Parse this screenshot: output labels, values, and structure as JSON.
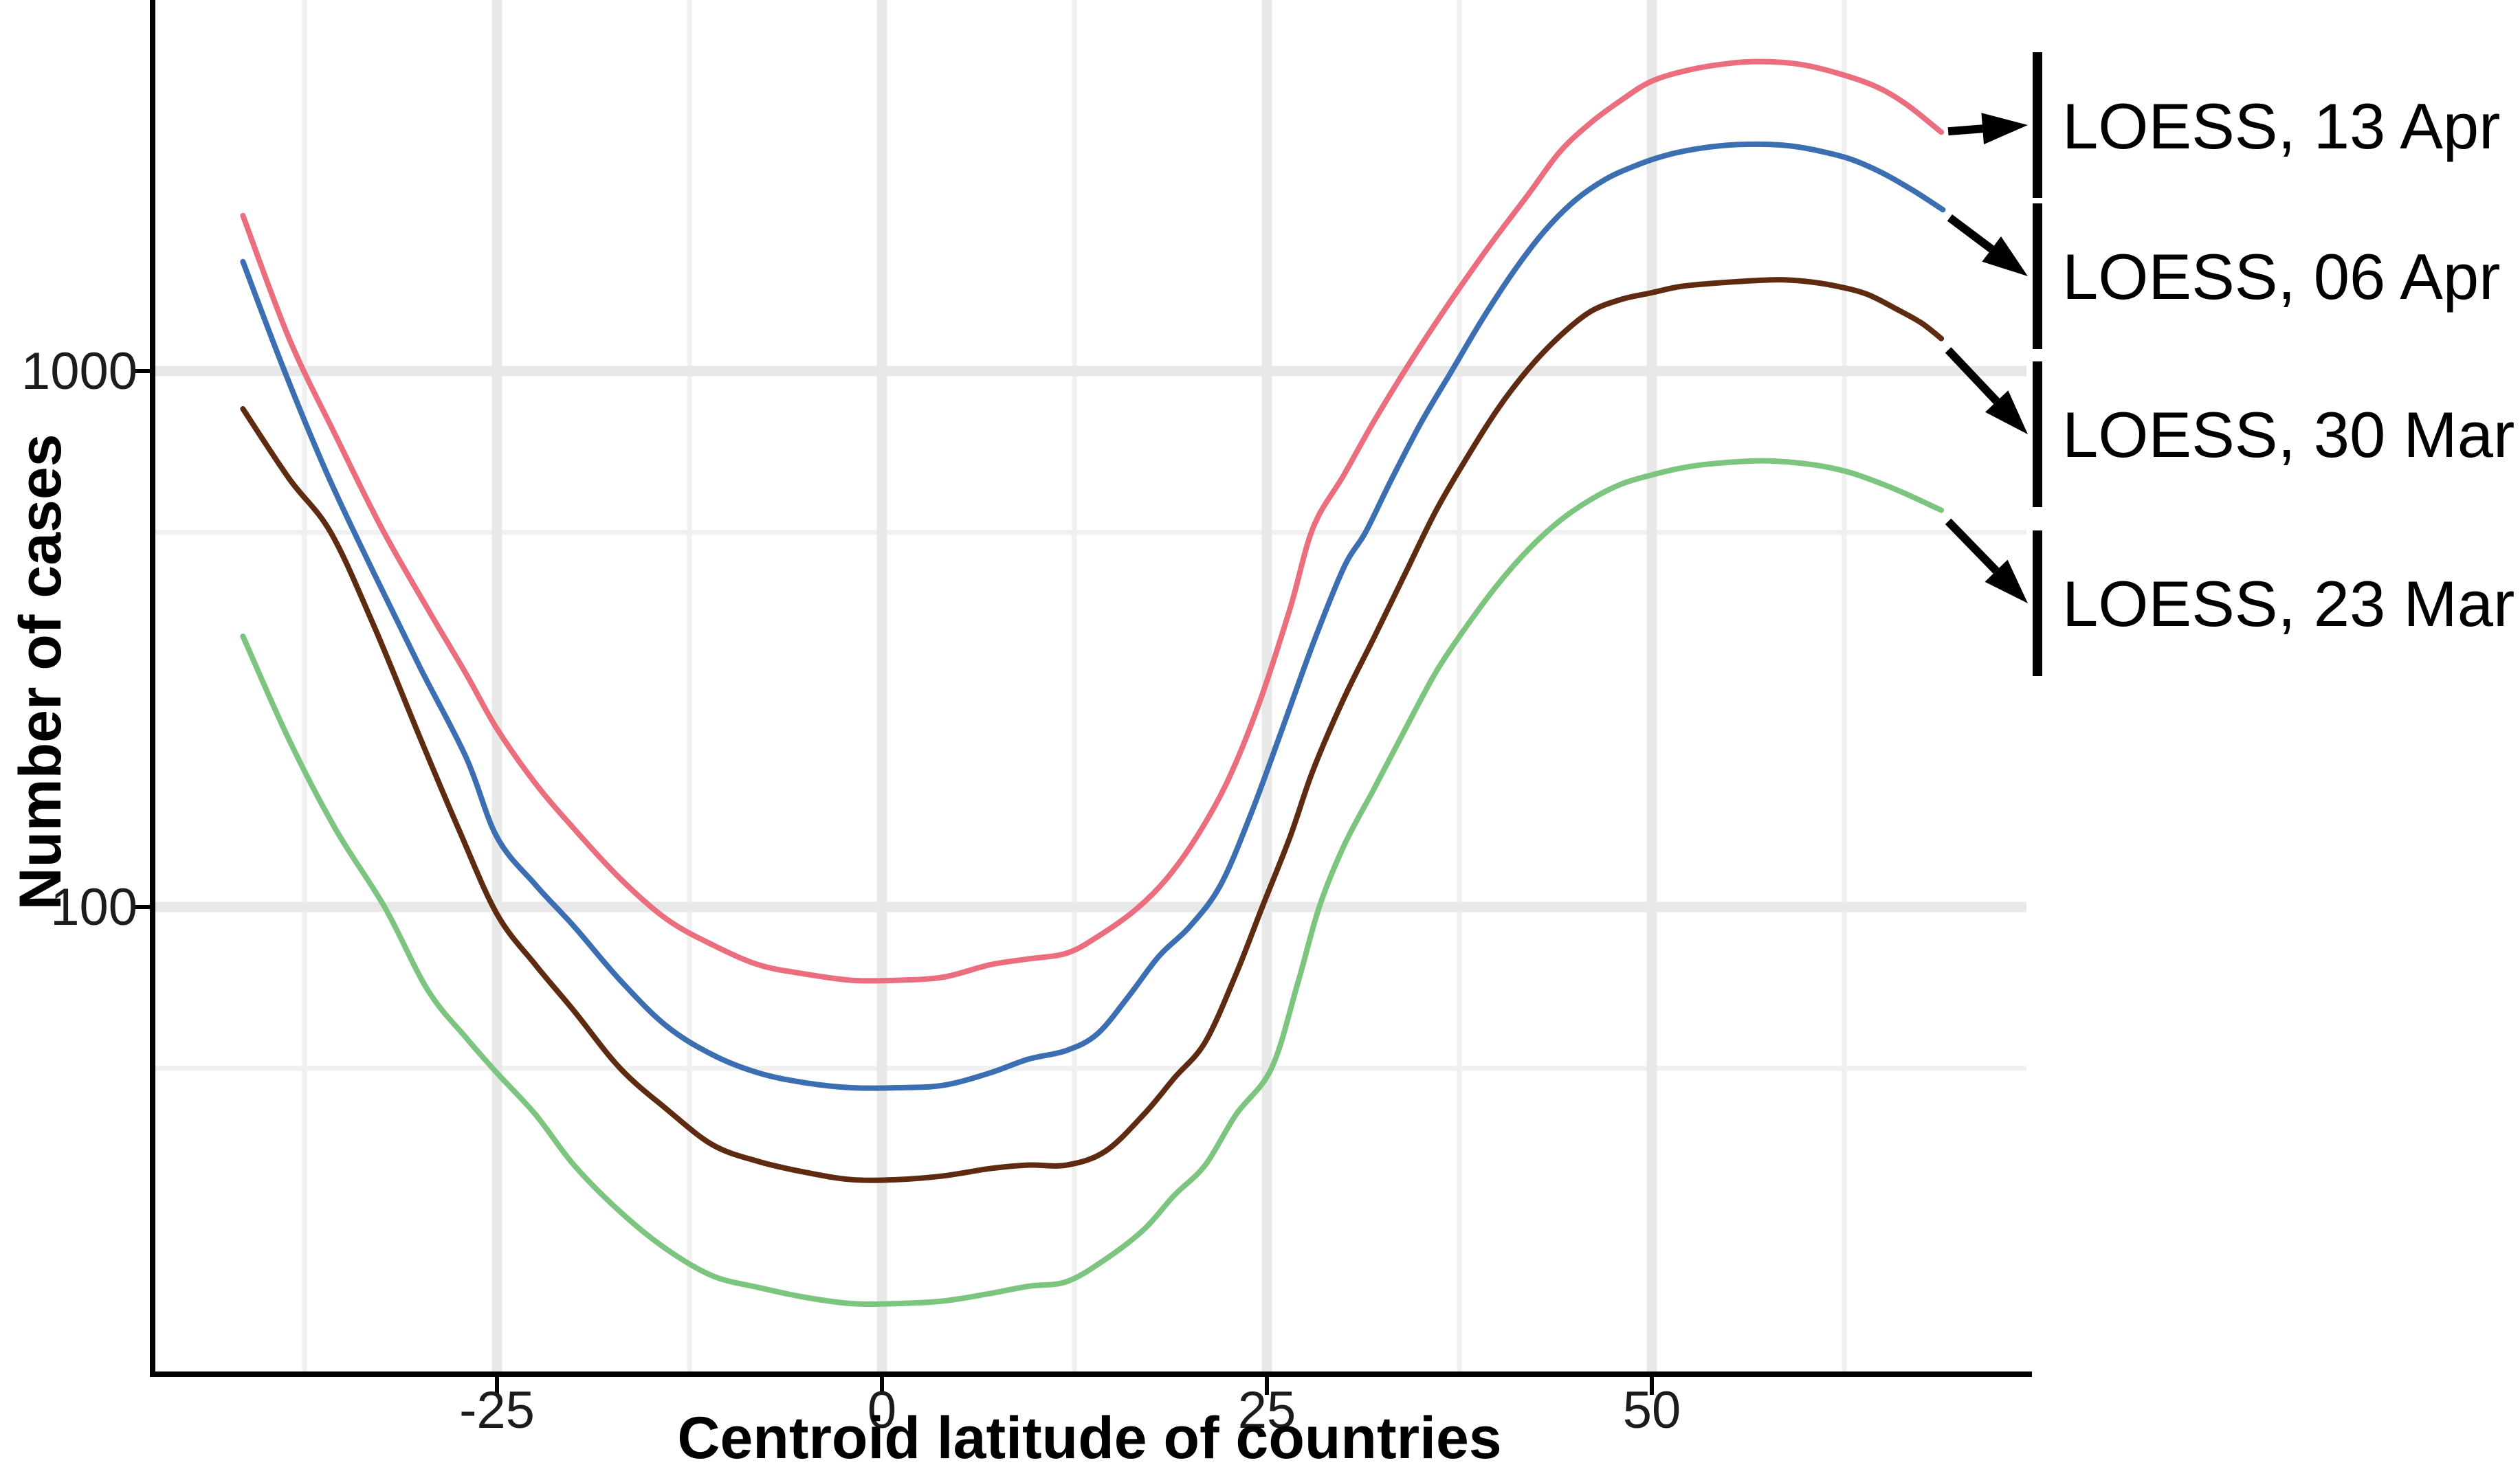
{
  "page": {
    "background": "#ffffff"
  },
  "chart_data": {
    "type": "line",
    "title": "",
    "xlabel": "Centroid latitude of countries",
    "ylabel": "Number of cases",
    "grid": true,
    "legend_position": "right-annotations",
    "x_axis": {
      "label": "Centroid latitude of countries",
      "tick_values": [
        -25,
        0,
        25,
        50
      ],
      "tick_labels": [
        "-25",
        "0",
        "25",
        "50"
      ],
      "minor_gridlines": [
        -37.5,
        -12.5,
        12.5,
        37.5,
        62.5
      ],
      "range": [
        -47.3,
        74.3
      ]
    },
    "y_axis": {
      "label": "Number of cases",
      "scale": "log10",
      "tick_values": [
        1000,
        100
      ],
      "tick_labels": [
        "1000",
        "100"
      ],
      "minor_gridlines": [
        500,
        50
      ],
      "range": [
        13.5,
        4800
      ]
    },
    "series": [
      {
        "name": "LOESS, 13 Apr",
        "color": "#ea6e7e",
        "points": [
          [
            -41.5,
            1950
          ],
          [
            -38.5,
            1150
          ],
          [
            -35.5,
            760
          ],
          [
            -32.5,
            510
          ],
          [
            -29.5,
            360
          ],
          [
            -27,
            272
          ],
          [
            -25,
            215
          ],
          [
            -22.5,
            170
          ],
          [
            -20,
            140
          ],
          [
            -17,
            113
          ],
          [
            -14,
            95
          ],
          [
            -11,
            85
          ],
          [
            -8,
            78
          ],
          [
            -5,
            75
          ],
          [
            -2,
            73
          ],
          [
            1,
            73
          ],
          [
            4,
            74
          ],
          [
            7,
            78
          ],
          [
            9.5,
            80
          ],
          [
            12,
            82
          ],
          [
            14,
            88
          ],
          [
            16.5,
            99
          ],
          [
            18.5,
            113
          ],
          [
            20.5,
            136
          ],
          [
            22.5,
            173
          ],
          [
            24.5,
            240
          ],
          [
            26.5,
            360
          ],
          [
            28,
            510
          ],
          [
            30,
            640
          ],
          [
            32,
            810
          ],
          [
            34.5,
            1060
          ],
          [
            37,
            1360
          ],
          [
            39.5,
            1720
          ],
          [
            42,
            2140
          ],
          [
            44,
            2560
          ],
          [
            46,
            2900
          ],
          [
            48,
            3200
          ],
          [
            50,
            3475
          ],
          [
            52.5,
            3650
          ],
          [
            55,
            3750
          ],
          [
            57,
            3780
          ],
          [
            59.5,
            3740
          ],
          [
            62,
            3600
          ],
          [
            64.5,
            3400
          ],
          [
            66.5,
            3150
          ],
          [
            68.8,
            2790
          ]
        ]
      },
      {
        "name": "LOESS, 06 Apr",
        "color": "#3c6fb1",
        "points": [
          [
            -41.5,
            1600
          ],
          [
            -38.8,
            1000
          ],
          [
            -36,
            640
          ],
          [
            -33,
            420
          ],
          [
            -30,
            280
          ],
          [
            -27,
            190
          ],
          [
            -25,
            135
          ],
          [
            -22.5,
            110
          ],
          [
            -20,
            92
          ],
          [
            -17,
            73
          ],
          [
            -14,
            60
          ],
          [
            -11,
            53
          ],
          [
            -8,
            49
          ],
          [
            -5,
            47
          ],
          [
            -2,
            46
          ],
          [
            1,
            46
          ],
          [
            4,
            46.5
          ],
          [
            7,
            49
          ],
          [
            9.5,
            52
          ],
          [
            12,
            54
          ],
          [
            14,
            58
          ],
          [
            16,
            68
          ],
          [
            18,
            81
          ],
          [
            20,
            92
          ],
          [
            22,
            110
          ],
          [
            24,
            150
          ],
          [
            26,
            215
          ],
          [
            28,
            310
          ],
          [
            30,
            430
          ],
          [
            31.4,
            500
          ],
          [
            33,
            620
          ],
          [
            35,
            800
          ],
          [
            37,
            1000
          ],
          [
            39,
            1250
          ],
          [
            41,
            1530
          ],
          [
            43,
            1820
          ],
          [
            45,
            2080
          ],
          [
            47,
            2280
          ],
          [
            49,
            2420
          ],
          [
            51,
            2530
          ],
          [
            53,
            2600
          ],
          [
            55,
            2640
          ],
          [
            57,
            2650
          ],
          [
            59,
            2630
          ],
          [
            61,
            2570
          ],
          [
            63,
            2480
          ],
          [
            65,
            2340
          ],
          [
            67,
            2170
          ],
          [
            68.9,
            2000
          ]
        ]
      },
      {
        "name": "LOESS, 30 Mar",
        "color": "#5e2b11",
        "points": [
          [
            -41.5,
            850
          ],
          [
            -38.5,
            630
          ],
          [
            -35.8,
            500
          ],
          [
            -33,
            335
          ],
          [
            -30,
            207
          ],
          [
            -27.5,
            140
          ],
          [
            -25,
            97
          ],
          [
            -22.5,
            78
          ],
          [
            -20,
            64
          ],
          [
            -17,
            50
          ],
          [
            -14,
            42
          ],
          [
            -11,
            36
          ],
          [
            -8,
            33.5
          ],
          [
            -5,
            32
          ],
          [
            -2,
            31
          ],
          [
            1,
            31
          ],
          [
            4,
            31.5
          ],
          [
            7,
            32.5
          ],
          [
            9.5,
            33
          ],
          [
            12,
            33
          ],
          [
            14.5,
            35
          ],
          [
            17,
            41
          ],
          [
            19,
            48
          ],
          [
            21,
            56
          ],
          [
            23,
            75
          ],
          [
            24.7,
            100
          ],
          [
            26.5,
            135
          ],
          [
            28,
            180
          ],
          [
            30,
            245
          ],
          [
            32,
            320
          ],
          [
            34,
            420
          ],
          [
            36,
            550
          ],
          [
            38,
            690
          ],
          [
            40,
            850
          ],
          [
            42,
            1010
          ],
          [
            44,
            1160
          ],
          [
            46,
            1290
          ],
          [
            48,
            1360
          ],
          [
            50,
            1400
          ],
          [
            52,
            1440
          ],
          [
            55,
            1465
          ],
          [
            58,
            1480
          ],
          [
            60,
            1470
          ],
          [
            62,
            1440
          ],
          [
            64,
            1390
          ],
          [
            66,
            1300
          ],
          [
            67.5,
            1230
          ],
          [
            68.8,
            1150
          ]
        ]
      },
      {
        "name": "LOESS, 23 Mar",
        "color": "#7cc57e",
        "points": [
          [
            -41.5,
            320
          ],
          [
            -38.5,
            205
          ],
          [
            -35.5,
            140
          ],
          [
            -32.3,
            100
          ],
          [
            -29.5,
            70
          ],
          [
            -27,
            57
          ],
          [
            -25,
            49
          ],
          [
            -22.5,
            41
          ],
          [
            -20,
            33
          ],
          [
            -17,
            27
          ],
          [
            -14,
            23
          ],
          [
            -11,
            20.5
          ],
          [
            -8,
            19.5
          ],
          [
            -5,
            18.7
          ],
          [
            -2,
            18.2
          ],
          [
            1,
            18.2
          ],
          [
            4,
            18.4
          ],
          [
            7,
            19
          ],
          [
            9.5,
            19.6
          ],
          [
            12,
            20
          ],
          [
            14.5,
            22
          ],
          [
            17,
            25
          ],
          [
            19,
            29
          ],
          [
            21,
            33
          ],
          [
            23,
            41
          ],
          [
            25.3,
            50
          ],
          [
            27,
            72
          ],
          [
            28.4,
            100
          ],
          [
            30,
            130
          ],
          [
            32,
            167
          ],
          [
            34,
            215
          ],
          [
            36,
            275
          ],
          [
            38,
            335
          ],
          [
            40,
            400
          ],
          [
            42,
            465
          ],
          [
            44,
            525
          ],
          [
            46,
            575
          ],
          [
            48,
            615
          ],
          [
            50,
            640
          ],
          [
            52,
            660
          ],
          [
            54,
            672
          ],
          [
            57,
            680
          ],
          [
            59,
            676
          ],
          [
            61,
            665
          ],
          [
            63,
            645
          ],
          [
            65,
            615
          ],
          [
            66.5,
            590
          ],
          [
            68.8,
            550
          ]
        ]
      }
    ],
    "legend": {
      "entries": [
        {
          "label": "LOESS, 13 Apr"
        },
        {
          "label": "LOESS, 06 Apr"
        },
        {
          "label": "LOESS, 30 Mar"
        },
        {
          "label": "LOESS, 23 Mar"
        }
      ]
    }
  }
}
